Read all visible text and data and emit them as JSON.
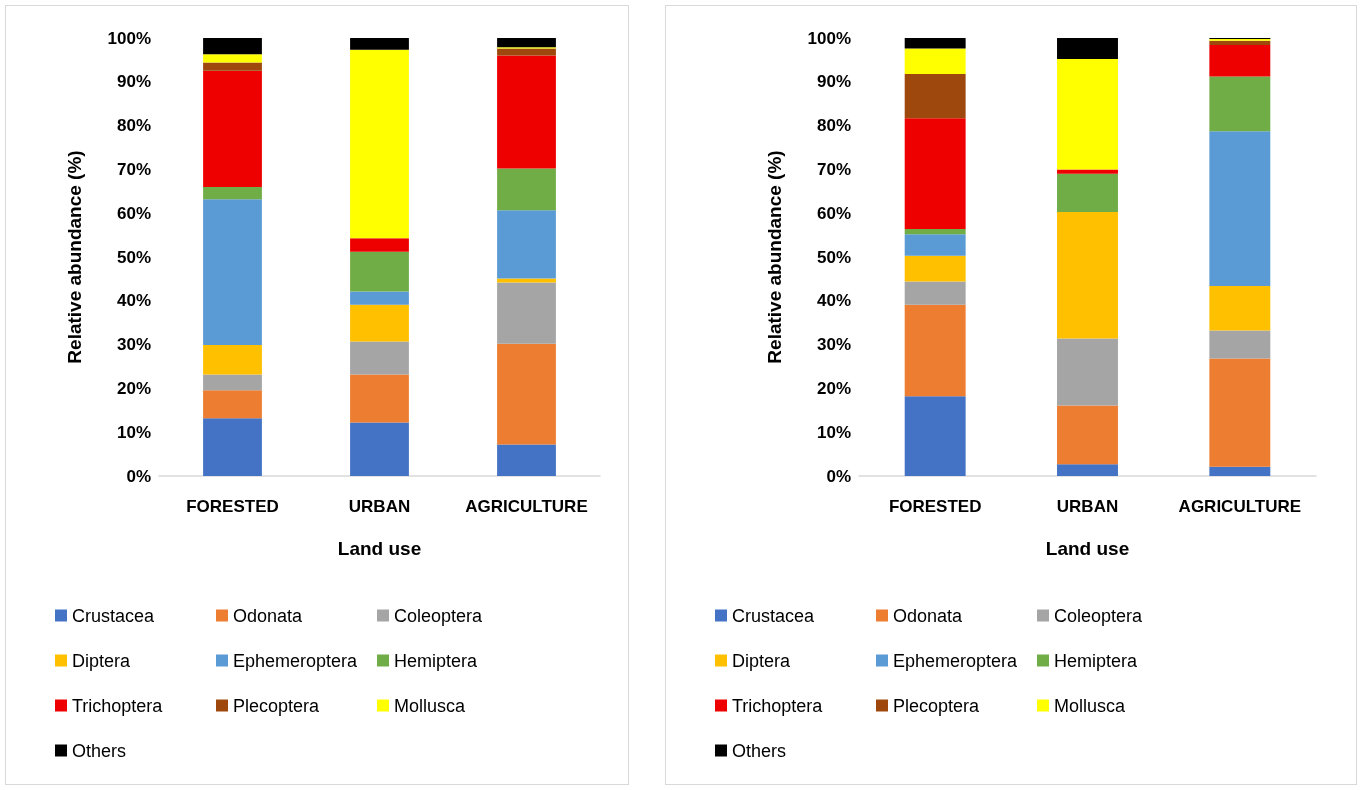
{
  "chart_data": [
    {
      "type": "bar",
      "stacked": true,
      "xlabel": "Land use",
      "ylabel": "Relative abundance (%)",
      "legend": "bottom",
      "categories": [
        "FORESTED",
        "URBAN",
        "AGRICULTURE"
      ],
      "ylim": [
        0,
        100
      ],
      "yticks": [
        {
          "value": 0,
          "label": "0%"
        },
        {
          "value": 10,
          "label": "10%"
        },
        {
          "value": 20,
          "label": "20%"
        },
        {
          "value": 30,
          "label": "30%"
        },
        {
          "value": 40,
          "label": "40%"
        },
        {
          "value": 50,
          "label": "50%"
        },
        {
          "value": 60,
          "label": "60%"
        },
        {
          "value": 70,
          "label": "70%"
        },
        {
          "value": 80,
          "label": "80%"
        },
        {
          "value": 90,
          "label": "90%"
        },
        {
          "value": 100,
          "label": "100%"
        }
      ],
      "series": [
        {
          "name": "Crustacea",
          "color": "#4472c4",
          "values": [
            13.2,
            12.2,
            7.2
          ]
        },
        {
          "name": "Odonata",
          "color": "#ed7d31",
          "values": [
            6.4,
            11.0,
            23.0
          ]
        },
        {
          "name": "Coleoptera",
          "color": "#a5a5a5",
          "values": [
            3.6,
            7.5,
            14.0
          ]
        },
        {
          "name": "Diptera",
          "color": "#ffc000",
          "values": [
            6.7,
            8.4,
            0.9
          ]
        },
        {
          "name": "Ephemeroptera",
          "color": "#5b9bd5",
          "values": [
            33.3,
            3.0,
            15.6
          ]
        },
        {
          "name": "Hemiptera",
          "color": "#70ad47",
          "values": [
            2.8,
            9.1,
            9.5
          ]
        },
        {
          "name": "Trichoptera",
          "color": "#ee0000",
          "values": [
            26.5,
            3.1,
            25.8
          ]
        },
        {
          "name": "Plecoptera",
          "color": "#9e480e",
          "values": [
            1.9,
            0,
            1.6
          ]
        },
        {
          "name": "Mollusca",
          "color": "#ffff00",
          "values": [
            1.9,
            43.0,
            0.3
          ]
        },
        {
          "name": "Others",
          "color": "#000000",
          "values": [
            3.7,
            2.7,
            2.1
          ]
        }
      ]
    },
    {
      "type": "bar",
      "stacked": true,
      "xlabel": "Land use",
      "ylabel": "Relative abundance (%)",
      "legend": "bottom",
      "categories": [
        "FORESTED",
        "URBAN",
        "AGRICULTURE"
      ],
      "ylim": [
        0,
        100
      ],
      "yticks": [
        {
          "value": 0,
          "label": "0%"
        },
        {
          "value": 10,
          "label": "10%"
        },
        {
          "value": 20,
          "label": "20%"
        },
        {
          "value": 30,
          "label": "30%"
        },
        {
          "value": 40,
          "label": "40%"
        },
        {
          "value": 50,
          "label": "50%"
        },
        {
          "value": 60,
          "label": "60%"
        },
        {
          "value": 70,
          "label": "70%"
        },
        {
          "value": 80,
          "label": "80%"
        },
        {
          "value": 90,
          "label": "90%"
        },
        {
          "value": 100,
          "label": "100%"
        }
      ],
      "series": [
        {
          "name": "Crustacea",
          "color": "#4472c4",
          "values": [
            18.2,
            2.7,
            2.1
          ]
        },
        {
          "name": "Odonata",
          "color": "#ed7d31",
          "values": [
            20.9,
            13.4,
            24.7
          ]
        },
        {
          "name": "Coleoptera",
          "color": "#a5a5a5",
          "values": [
            5.3,
            15.3,
            6.4
          ]
        },
        {
          "name": "Diptera",
          "color": "#ffc000",
          "values": [
            5.9,
            28.9,
            10.2
          ]
        },
        {
          "name": "Ephemeroptera",
          "color": "#5b9bd5",
          "values": [
            4.9,
            0,
            35.3
          ]
        },
        {
          "name": "Hemiptera",
          "color": "#70ad47",
          "values": [
            1.2,
            8.7,
            12.5
          ]
        },
        {
          "name": "Trichoptera",
          "color": "#ee0000",
          "values": [
            25.3,
            1.0,
            7.2
          ]
        },
        {
          "name": "Plecoptera",
          "color": "#9e480e",
          "values": [
            10.1,
            0,
            1.0
          ]
        },
        {
          "name": "Mollusca",
          "color": "#ffff00",
          "values": [
            5.8,
            25.2,
            0.4
          ]
        },
        {
          "name": "Others",
          "color": "#000000",
          "values": [
            2.4,
            4.8,
            0.2
          ]
        }
      ]
    }
  ]
}
